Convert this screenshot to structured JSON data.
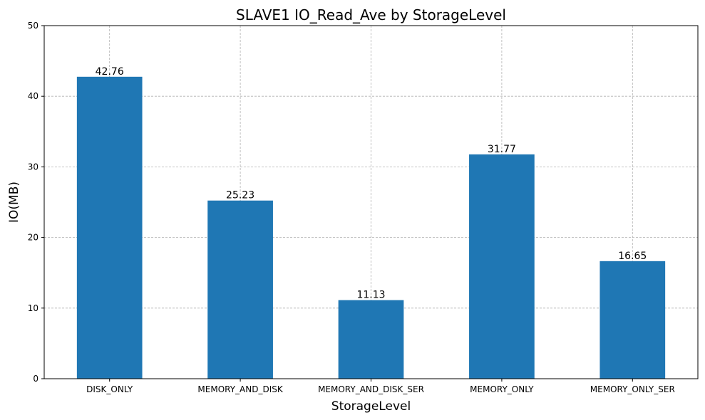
{
  "chart_data": {
    "type": "bar",
    "title": "SLAVE1 IO_Read_Ave by StorageLevel",
    "xlabel": "StorageLevel",
    "ylabel": "IO(MB)",
    "categories": [
      "DISK_ONLY",
      "MEMORY_AND_DISK",
      "MEMORY_AND_DISK_SER",
      "MEMORY_ONLY",
      "MEMORY_ONLY_SER"
    ],
    "values": [
      42.76,
      25.23,
      11.13,
      31.77,
      16.65
    ],
    "data_labels": [
      "42.76",
      "25.23",
      "11.13",
      "31.77",
      "16.65"
    ],
    "ylim": [
      0,
      50
    ],
    "yticks": [
      0,
      10,
      20,
      30,
      40,
      50
    ],
    "grid": true,
    "colors": {
      "bar": "#1f77b4"
    }
  }
}
